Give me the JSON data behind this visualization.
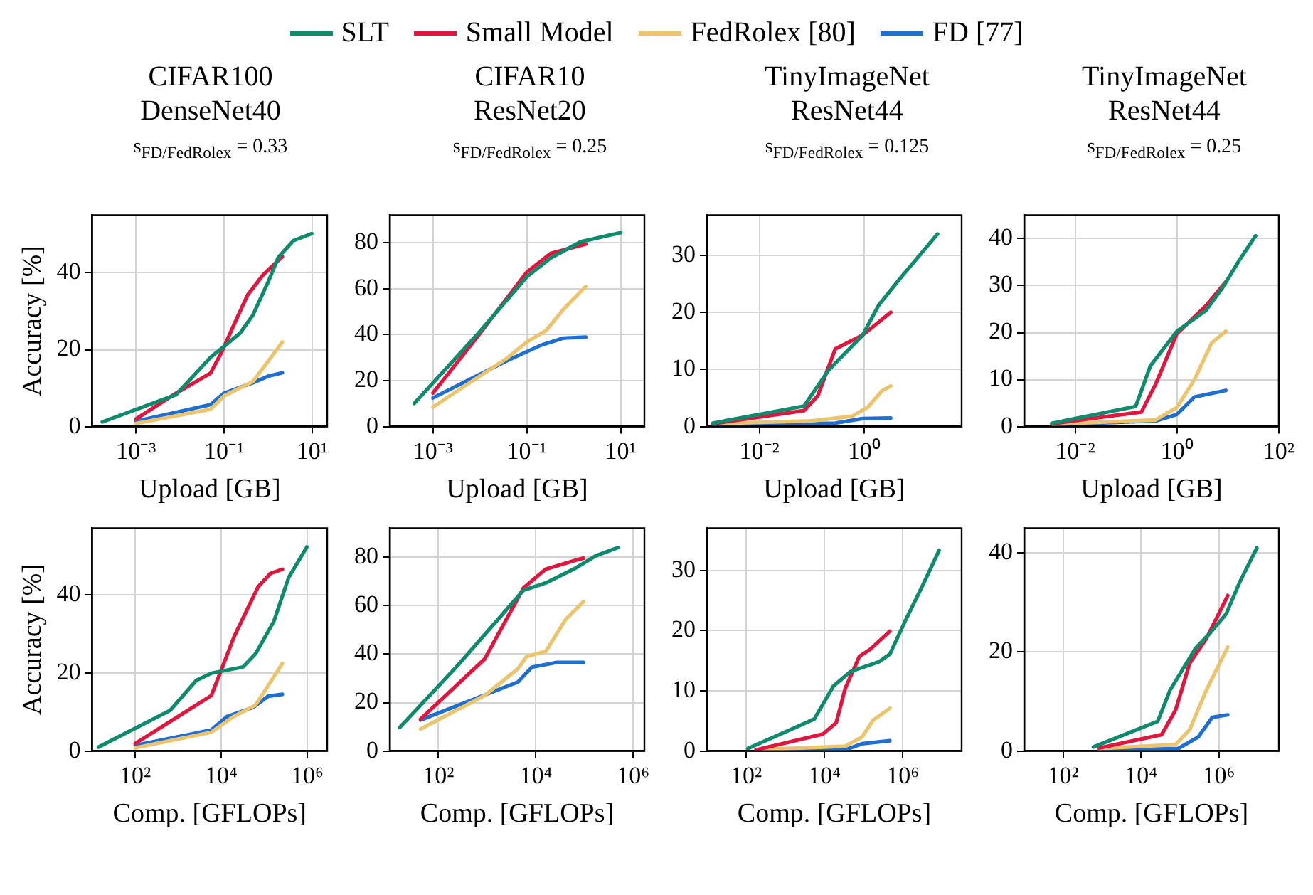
{
  "chart_data": [
    {
      "type": "line",
      "title": "CIFAR100 DenseNet40",
      "subtitle": "s$_{FD/FedRolex}$ = 0.33",
      "xlabel": "Upload [GB]",
      "ylabel": "Accuracy [%]",
      "log": "x",
      "grid": true,
      "legend": "top",
      "xlim": [
        0.0001,
        22
      ],
      "xticks": [
        {
          "value": 0.001,
          "label": "10⁻³"
        },
        {
          "value": 0.1,
          "label": "10⁻¹"
        },
        {
          "value": 10,
          "label": "10¹"
        }
      ],
      "ylim": [
        0,
        55
      ],
      "yticks": [
        0,
        20,
        40
      ],
      "series": [
        {
          "name": "SLT",
          "color": "#0e8a6c",
          "x": [
            0.00017,
            0.0081,
            0.049,
            0.089,
            0.23,
            0.45,
            1,
            1.7,
            3.8,
            9.8
          ],
          "values": [
            1.2,
            8.3,
            18,
            20.4,
            24.3,
            29,
            37.6,
            44,
            48.4,
            50.2
          ]
        },
        {
          "name": "Small Model",
          "color": "#e0163f",
          "x": [
            0.001,
            0.0081,
            0.049,
            0.089,
            0.17,
            0.34,
            0.76,
            2.1
          ],
          "values": [
            2,
            8.7,
            13.9,
            19.5,
            26.7,
            34.2,
            39.4,
            44.2
          ]
        },
        {
          "name": "FedRolex [80]",
          "color": "#ecc46e",
          "x": [
            0.001,
            0.049,
            0.1,
            0.45,
            1,
            2.1
          ],
          "values": [
            0.8,
            4.5,
            8,
            11.7,
            17,
            22
          ]
        },
        {
          "name": "FD [77]",
          "color": "#1f6fd1",
          "x": [
            0.001,
            0.049,
            0.1,
            0.45,
            1,
            2.1
          ],
          "values": [
            1.4,
            5.7,
            8.7,
            11.4,
            13.1,
            14
          ]
        }
      ]
    },
    {
      "type": "line",
      "title": "CIFAR10 ResNet20",
      "subtitle": "s$_{FD/FedRolex}$ = 0.25",
      "xlabel": "Upload [GB]",
      "log": "x",
      "grid": true,
      "xlim": [
        0.00012,
        32
      ],
      "xticks": [
        {
          "value": 0.001,
          "label": "10⁻³"
        },
        {
          "value": 0.1,
          "label": "10⁻¹"
        },
        {
          "value": 10,
          "label": "10¹"
        }
      ],
      "ylim": [
        0,
        92
      ],
      "yticks": [
        0,
        20,
        40,
        60,
        80
      ],
      "series": [
        {
          "color": "#0e8a6c",
          "x": [
            0.0004,
            0.0095,
            0.1,
            0.32,
            1.4,
            10
          ],
          "values": [
            10.1,
            40.9,
            65.2,
            73.3,
            80.4,
            84.4
          ]
        },
        {
          "color": "#e0163f",
          "x": [
            0.001,
            0.0095,
            0.1,
            0.32,
            1.8
          ],
          "values": [
            14.6,
            39.9,
            67.2,
            75.3,
            79.4
          ]
        },
        {
          "color": "#ecc46e",
          "x": [
            0.001,
            0.038,
            0.1,
            0.26,
            0.6,
            1.8
          ],
          "values": [
            8.5,
            29.8,
            36.8,
            41.9,
            51,
            61
          ]
        },
        {
          "color": "#1f6fd1",
          "x": [
            0.001,
            0.038,
            0.2,
            0.6,
            1.8
          ],
          "values": [
            12.5,
            28.7,
            35.4,
            38.5,
            38.9
          ]
        }
      ]
    },
    {
      "type": "line",
      "title": "TinyImageNet ResNet44",
      "subtitle": "s$_{FD/FedRolex}$ = 0.125",
      "xlabel": "Upload [GB]",
      "log": "x",
      "grid": true,
      "xlim": [
        0.001,
        72
      ],
      "xticks": [
        {
          "value": 0.01,
          "label": "10⁻²"
        },
        {
          "value": 1,
          "label": "10⁰"
        }
      ],
      "ylim": [
        0,
        37
      ],
      "yticks": [
        0,
        10,
        20,
        30
      ],
      "series": [
        {
          "color": "#0e8a6c",
          "x": [
            0.0013,
            0.071,
            0.21,
            0.93,
            1.9,
            5.1,
            25
          ],
          "values": [
            0.6,
            3.6,
            9.9,
            16,
            21.3,
            26.2,
            33.7
          ]
        },
        {
          "color": "#e0163f",
          "x": [
            0.0013,
            0.071,
            0.13,
            0.28,
            0.93,
            3.2
          ],
          "values": [
            0.5,
            2.8,
            5.4,
            13.6,
            16,
            20
          ]
        },
        {
          "color": "#ecc46e",
          "x": [
            0.0013,
            0.1,
            0.58,
            1.17,
            2.2,
            3.2
          ],
          "values": [
            0.5,
            1,
            1.8,
            3.4,
            6.3,
            7.1
          ]
        },
        {
          "color": "#1f6fd1",
          "x": [
            0.0013,
            0.28,
            0.93,
            3.2
          ],
          "values": [
            0.4,
            0.6,
            1.4,
            1.5
          ]
        }
      ]
    },
    {
      "type": "line",
      "title": "TinyImageNet ResNet44",
      "subtitle": "s$_{FD/FedRolex}$ = 0.25",
      "xlabel": "Upload [GB]",
      "log": "x",
      "grid": true,
      "xlim": [
        0.001,
        100
      ],
      "xticks": [
        {
          "value": 0.01,
          "label": "10⁻²"
        },
        {
          "value": 1,
          "label": "10⁰"
        },
        {
          "value": 100,
          "label": "10²"
        }
      ],
      "ylim": [
        0,
        45
      ],
      "yticks": [
        0,
        10,
        20,
        30,
        40
      ],
      "series": [
        {
          "color": "#0e8a6c",
          "x": [
            0.0035,
            0.155,
            0.3,
            1,
            3.7,
            7.9,
            17,
            35
          ],
          "values": [
            0.7,
            4.3,
            12.9,
            20.3,
            24.7,
            29.6,
            35.5,
            40.6
          ]
        },
        {
          "color": "#e0163f",
          "x": [
            0.0035,
            0.2,
            0.38,
            1,
            3.7,
            9.1
          ],
          "values": [
            0.6,
            3.1,
            9,
            19.8,
            25.7,
            30.8
          ]
        },
        {
          "color": "#ecc46e",
          "x": [
            0.0035,
            0.38,
            1,
            2.2,
            4.8,
            9.1
          ],
          "values": [
            0.5,
            1.4,
            4.1,
            10,
            17.8,
            20.3
          ]
        },
        {
          "color": "#1f6fd1",
          "x": [
            0.0035,
            0.38,
            1,
            2.2,
            9.1
          ],
          "values": [
            0.4,
            1.2,
            2.6,
            6.3,
            7.7
          ]
        }
      ]
    },
    {
      "type": "line",
      "xlabel": "Comp. [GFLOPs]",
      "ylabel": "Accuracy [%]",
      "log": "x",
      "grid": true,
      "xlim": [
        10,
        2900000
      ],
      "xticks": [
        {
          "value": 100,
          "label": "10²"
        },
        {
          "value": 10000,
          "label": "10⁴"
        },
        {
          "value": 1000000,
          "label": "10⁶"
        }
      ],
      "ylim": [
        0,
        57
      ],
      "yticks": [
        0,
        20,
        40
      ],
      "series": [
        {
          "color": "#0e8a6c",
          "x": [
            14,
            650,
            2600,
            5900,
            32000,
            63000,
            166000,
            370000,
            980000
          ],
          "values": [
            1,
            10.4,
            18,
            19.9,
            21.5,
            24.9,
            33.1,
            44.4,
            52.2
          ]
        },
        {
          "color": "#e0163f",
          "x": [
            100,
            5900,
            20000,
            71000,
            138000,
            263000
          ],
          "values": [
            1.9,
            14.2,
            29.3,
            41.9,
            45.4,
            46.5
          ]
        },
        {
          "color": "#ecc46e",
          "x": [
            100,
            5900,
            18000,
            62000,
            123000,
            263000
          ],
          "values": [
            0.8,
            4.8,
            8.6,
            11.7,
            16.7,
            22.4
          ]
        },
        {
          "color": "#1f6fd1",
          "x": [
            100,
            5900,
            13500,
            54000,
            123000,
            263000
          ],
          "values": [
            1.4,
            5.4,
            8.8,
            11.1,
            14,
            14.5
          ]
        }
      ]
    },
    {
      "type": "line",
      "xlabel": "Comp. [GFLOPs]",
      "log": "x",
      "grid": true,
      "xlim": [
        10,
        1700000
      ],
      "xticks": [
        {
          "value": 100,
          "label": "10²"
        },
        {
          "value": 10000,
          "label": "10⁴"
        },
        {
          "value": 1000000,
          "label": "10⁶"
        }
      ],
      "ylim": [
        0,
        92
      ],
      "yticks": [
        0,
        20,
        40,
        60,
        80
      ],
      "series": [
        {
          "color": "#0e8a6c",
          "x": [
            16,
            240,
            5600,
            16000,
            60000,
            170000,
            490000
          ],
          "values": [
            9.7,
            35,
            66.4,
            69.4,
            75.1,
            80.6,
            84
          ]
        },
        {
          "color": "#e0163f",
          "x": [
            43,
            890,
            5600,
            16000,
            60000,
            95000
          ],
          "values": [
            13.2,
            38,
            67.4,
            75.1,
            78.5,
            79.6
          ]
        },
        {
          "color": "#ecc46e",
          "x": [
            43,
            890,
            4300,
            6500,
            16000,
            41000,
            95000
          ],
          "values": [
            9.1,
            22.9,
            34,
            39,
            41.1,
            54.3,
            61.7
          ]
        },
        {
          "color": "#1f6fd1",
          "x": [
            43,
            4300,
            8300,
            27000,
            95000
          ],
          "values": [
            12.8,
            28.5,
            34.6,
            36.6,
            36.6
          ]
        }
      ]
    },
    {
      "type": "line",
      "xlabel": "Comp. [GFLOPs]",
      "log": "x",
      "grid": true,
      "xlim": [
        10,
        32000000
      ],
      "xticks": [
        {
          "value": 100,
          "label": "10²"
        },
        {
          "value": 10000,
          "label": "10⁴"
        },
        {
          "value": 1000000,
          "label": "10⁶"
        }
      ],
      "ylim": [
        0,
        37
      ],
      "yticks": [
        0,
        10,
        20,
        30
      ],
      "series": [
        {
          "color": "#0e8a6c",
          "x": [
            110,
            5500,
            17000,
            47000,
            245000,
            470000,
            1260000,
            3400000,
            8500000
          ],
          "values": [
            0.4,
            5.3,
            10.8,
            13.2,
            14.8,
            16.1,
            22.1,
            27.8,
            33.3
          ]
        },
        {
          "color": "#e0163f",
          "x": [
            180,
            9100,
            20000,
            34000,
            78000,
            148000,
            470000
          ],
          "values": [
            0.2,
            2.8,
            4.7,
            10.4,
            15.7,
            16.9,
            19.9
          ]
        },
        {
          "color": "#ecc46e",
          "x": [
            180,
            34000,
            91000,
            174000,
            470000
          ],
          "values": [
            0.2,
            0.8,
            2.3,
            5.1,
            7.1
          ]
        },
        {
          "color": "#1f6fd1",
          "x": [
            180,
            34000,
            91000,
            470000
          ],
          "values": [
            0.2,
            0.2,
            1.2,
            1.7
          ]
        }
      ]
    },
    {
      "type": "line",
      "xlabel": "Comp. [GFLOPs]",
      "log": "x",
      "grid": true,
      "xlim": [
        10,
        35000000
      ],
      "xticks": [
        {
          "value": 100,
          "label": "10²"
        },
        {
          "value": 10000,
          "label": "10⁴"
        },
        {
          "value": 1000000,
          "label": "10⁶"
        }
      ],
      "ylim": [
        0,
        45
      ],
      "yticks": [
        0,
        20,
        40
      ],
      "series": [
        {
          "color": "#0e8a6c",
          "x": [
            600,
            27000,
            56000,
            250000,
            580000,
            1550000,
            3500000,
            9500000
          ],
          "values": [
            0.8,
            6,
            12.3,
            20.7,
            23.7,
            27.7,
            34.2,
            41
          ]
        },
        {
          "color": "#e0163f",
          "x": [
            830,
            34000,
            78000,
            178000,
            480000,
            1700000
          ],
          "values": [
            0.6,
            3.3,
            8.3,
            17.7,
            22.7,
            31.4
          ]
        },
        {
          "color": "#ecc46e",
          "x": [
            830,
            78000,
            178000,
            480000,
            1700000
          ],
          "values": [
            0.5,
            1.3,
            4.3,
            12.3,
            21
          ]
        },
        {
          "color": "#1f6fd1",
          "x": [
            830,
            91000,
            295000,
            680000,
            1700000
          ],
          "values": [
            0.4,
            0.5,
            2.8,
            6.8,
            7.3
          ]
        }
      ]
    }
  ]
}
